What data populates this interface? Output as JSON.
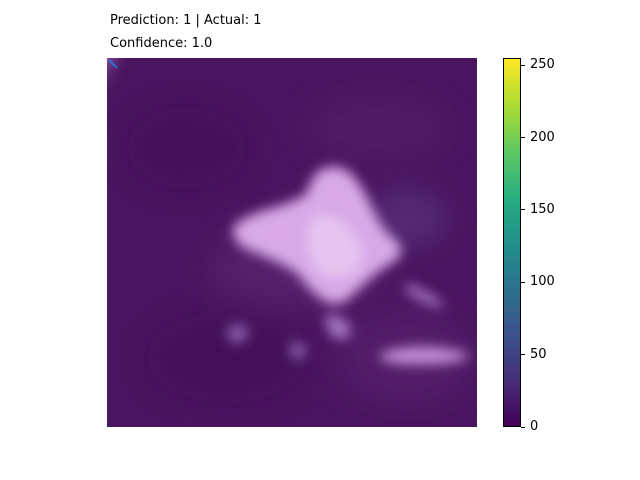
{
  "titles": {
    "line1": "Prediction: 1 | Actual: 1",
    "line2": "Confidence: 1.0"
  },
  "chart_data": {
    "type": "heatmap",
    "image_content": "grayscale crop with overlay, rendered with purple tint",
    "colormap": "viridis",
    "colorbar": {
      "range": [
        0,
        255
      ],
      "ticks": [
        0,
        50,
        100,
        150,
        200,
        250
      ],
      "tick_labels": [
        "0",
        "50",
        "100",
        "150",
        "200",
        "250"
      ],
      "colors": [
        "#440154",
        "#472d7b",
        "#3b528b",
        "#2c728e",
        "#21918c",
        "#28ae80",
        "#5ec962",
        "#addc30",
        "#fde725"
      ]
    },
    "colors": {
      "background": "#4a1560",
      "blob": "#d8a8e8",
      "blob_core": "#e6c4f0"
    }
  }
}
